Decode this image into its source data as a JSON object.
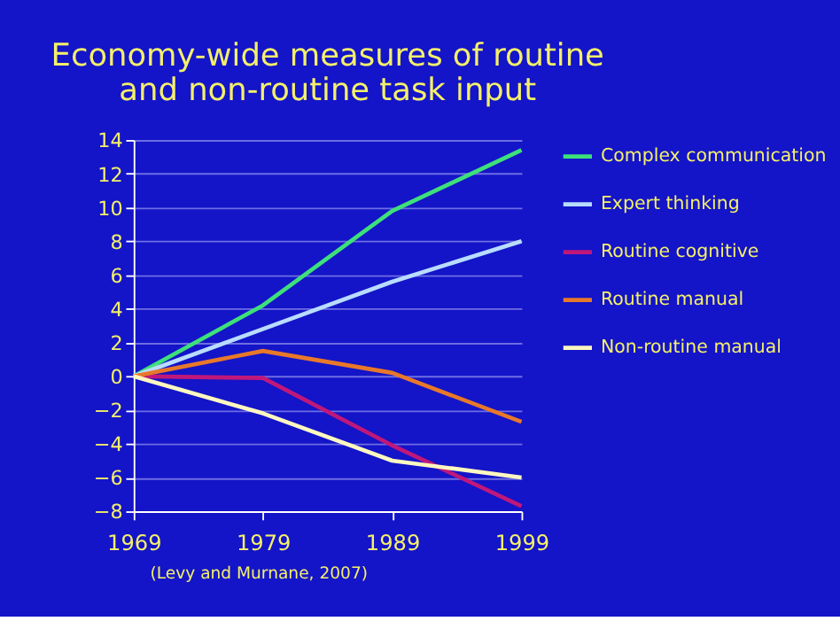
{
  "chart_data": {
    "type": "line",
    "title": "Economy-wide measures of routine and non-routine task input",
    "x": [
      1969,
      1979,
      1989,
      1999
    ],
    "xlim": [
      1969,
      1999
    ],
    "xticks": [
      1969,
      1979,
      1989,
      1999
    ],
    "ylim": [
      -8,
      14
    ],
    "yticks": [
      -8,
      -6,
      -4,
      -2,
      0,
      2,
      4,
      6,
      8,
      10,
      12,
      14
    ],
    "grid": "y",
    "legend": "right",
    "line_style": "solid",
    "marker": "none",
    "series": [
      {
        "name": "Complex communication",
        "color": "#3ee07a",
        "values": [
          0,
          4.2,
          9.8,
          13.4
        ]
      },
      {
        "name": "Expert thinking",
        "color": "#b8dcff",
        "values": [
          0,
          2.8,
          5.6,
          8.0
        ]
      },
      {
        "name": "Routine cognitive",
        "color": "#c0187a",
        "values": [
          0,
          -0.1,
          -4.1,
          -7.7
        ]
      },
      {
        "name": "Routine manual",
        "color": "#e8782a",
        "values": [
          0,
          1.5,
          0.2,
          -2.7
        ]
      },
      {
        "name": "Non-routine manual",
        "color": "#fff8c0",
        "values": [
          0,
          -2.2,
          -5.0,
          -6.0
        ]
      }
    ],
    "annotations": [
      "(Levy and Murnane, 2007)"
    ]
  }
}
